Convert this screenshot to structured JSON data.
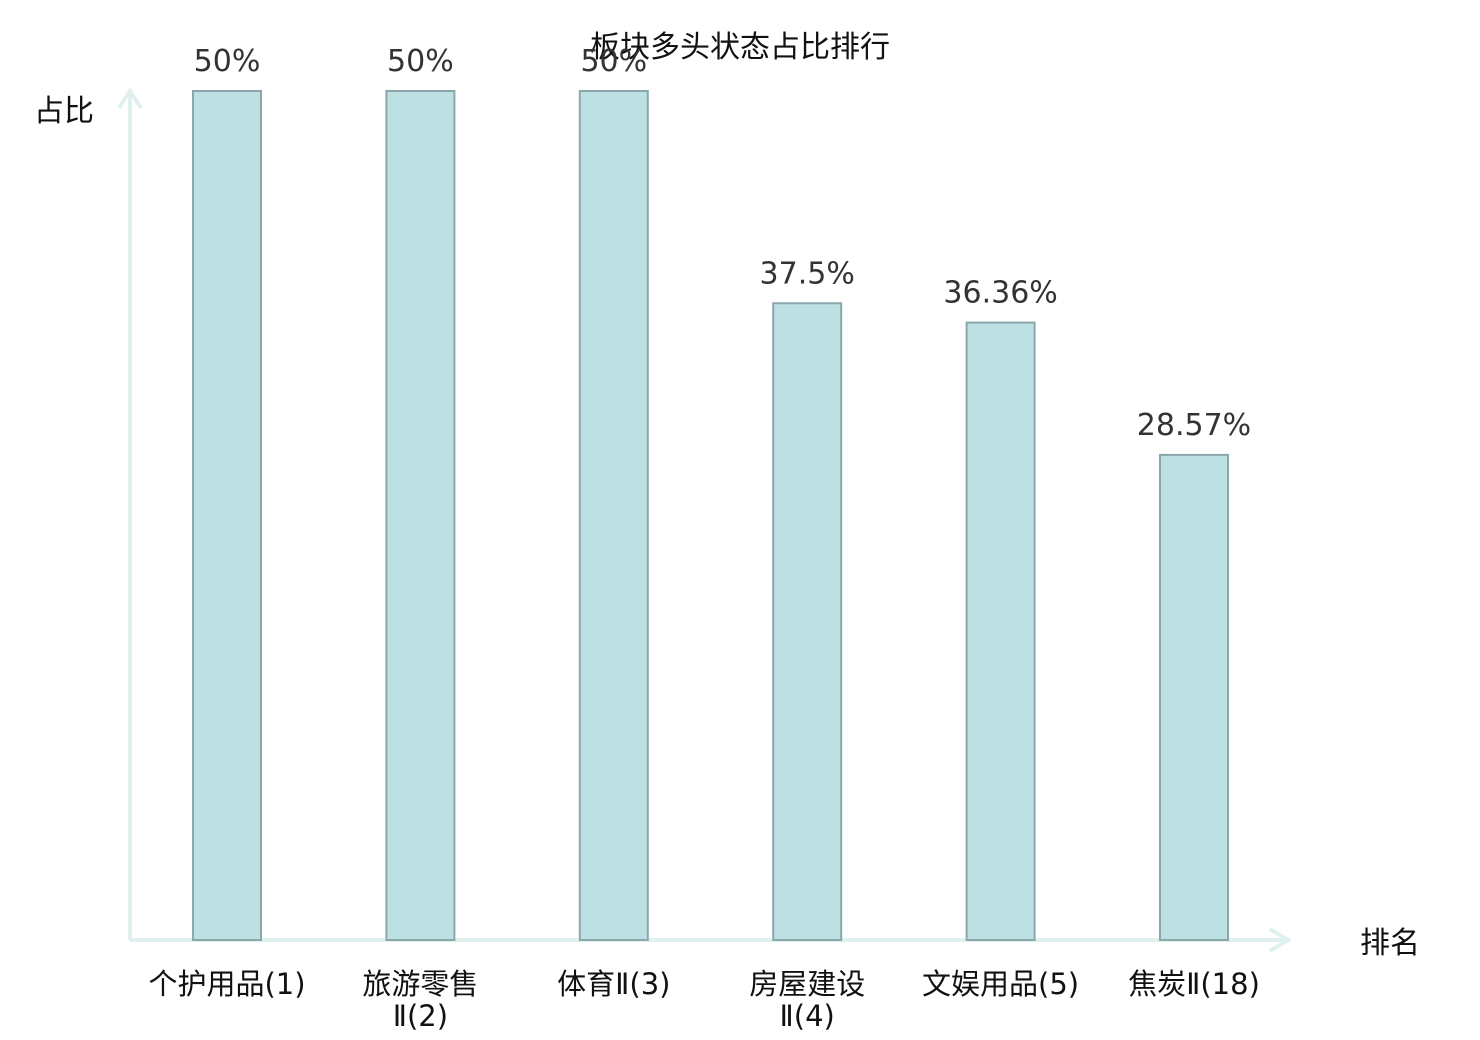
{
  "title": "板块多头状态占比排行",
  "chart_data": {
    "type": "bar",
    "title": "板块多头状态占比排行",
    "xlabel": "排名",
    "ylabel": "占比",
    "categories": [
      [
        "个护用品(1)"
      ],
      [
        "旅游零售",
        "Ⅱ(2)"
      ],
      [
        "体育Ⅱ(3)"
      ],
      [
        "房屋建设",
        "Ⅱ(4)"
      ],
      [
        "文娱用品(5)"
      ],
      [
        "焦炭Ⅱ(18)"
      ]
    ],
    "values": [
      50,
      50,
      50,
      37.5,
      36.36,
      28.57
    ],
    "value_labels": [
      "50%",
      "50%",
      "50%",
      "37.5%",
      "36.36%",
      "28.57%"
    ],
    "highlight_index": 5,
    "ylim": [
      0,
      50
    ],
    "grid": false,
    "legend": "none"
  },
  "colors": {
    "bar_fill": "#bde0e3",
    "bar_stroke": "#8aa8ab",
    "axis": "#dff1ef",
    "text": "#111111",
    "value_text": "#333333",
    "highlight": "#d9141b"
  }
}
